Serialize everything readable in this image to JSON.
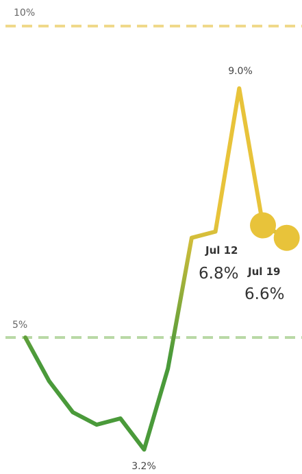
{
  "chart_data": {
    "type": "line",
    "title": "",
    "xlabel": "",
    "ylabel": "",
    "ylim": [
      2.8,
      10.5
    ],
    "x": [
      0,
      1,
      2,
      3,
      4,
      5,
      6,
      7,
      8,
      9,
      10,
      11
    ],
    "values": [
      5.0,
      4.3,
      3.8,
      3.6,
      3.7,
      3.2,
      4.5,
      6.6,
      6.7,
      9.0,
      6.8,
      6.6
    ],
    "colors": {
      "low": "#4a9a3a",
      "high": "#e8c33a"
    },
    "reference_lines": [
      {
        "value": 10,
        "label": "10%",
        "color": "#f0d98a"
      },
      {
        "value": 5,
        "label": "5%",
        "color": "#b9d9a6"
      }
    ],
    "annotations": [
      {
        "point": 5,
        "text": "3.2%"
      },
      {
        "point": 9,
        "text": "9.0%"
      }
    ],
    "highlights": [
      {
        "point": 10,
        "date": "Jul 12",
        "value": "6.8%"
      },
      {
        "point": 11,
        "date": "Jul 19",
        "value": "6.6%"
      }
    ]
  }
}
